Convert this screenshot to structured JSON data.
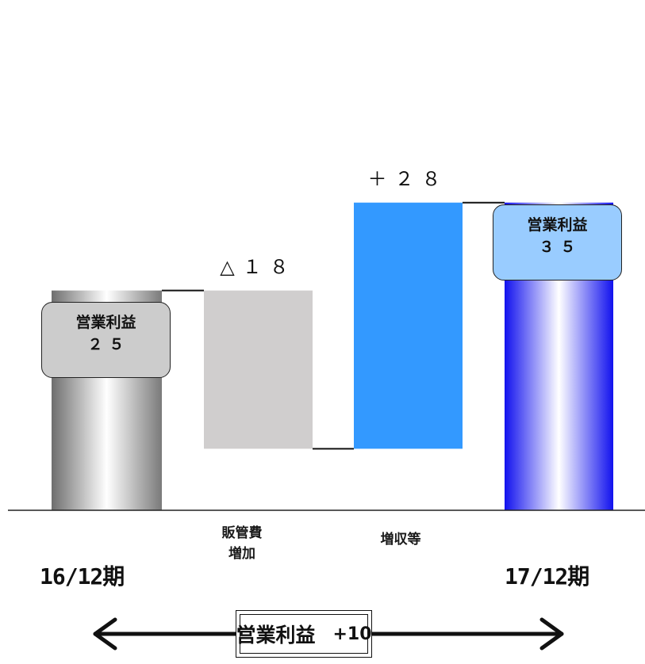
{
  "chart_data": {
    "type": "waterfall",
    "ylim": [
      0,
      50
    ],
    "bars": [
      {
        "id": "start",
        "label": "16/12期",
        "kind": "total",
        "value": 25
      },
      {
        "id": "sga",
        "label": "販管費\n増加",
        "kind": "decrease",
        "value": -18,
        "change_text": "△１８"
      },
      {
        "id": "revenue",
        "label": "増収等",
        "kind": "increase",
        "value": 28,
        "change_text": "＋２８"
      },
      {
        "id": "end",
        "label": "17/12期",
        "kind": "total",
        "value": 35
      }
    ],
    "callouts": [
      {
        "title": "営業利益",
        "value": "２５"
      },
      {
        "title": "営業利益",
        "value": "３５"
      }
    ],
    "summary": {
      "label": "営業利益",
      "value": "+10"
    },
    "colors": {
      "start_bar": "#8c8c8c",
      "decrease_bar": "#d0cece",
      "increase_bar": "#3399ff",
      "end_bar": "#1a1aee",
      "start_callout": "#cccccc",
      "end_callout": "#99ccff"
    }
  }
}
